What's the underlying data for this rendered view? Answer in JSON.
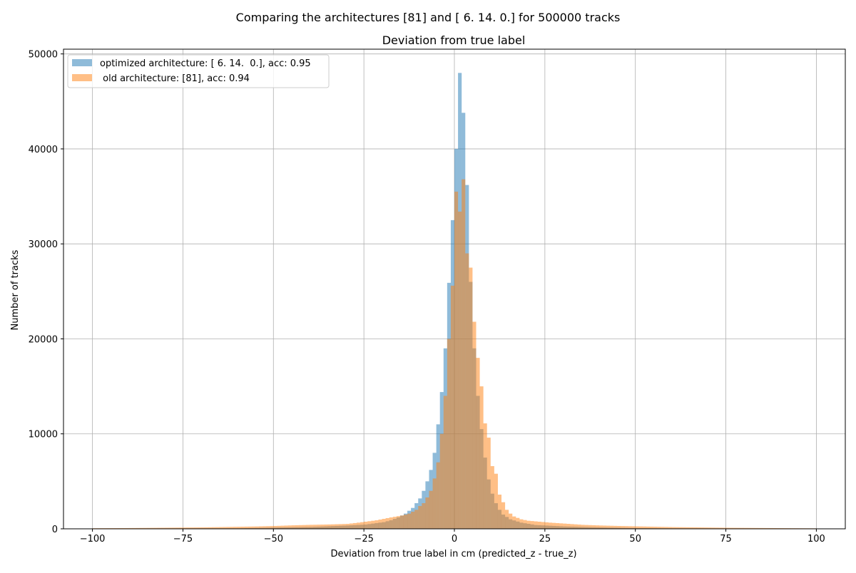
{
  "chart_data": {
    "type": "bar",
    "suptitle": "Comparing the architectures [81] and [ 6. 14.  0.] for 500000 tracks",
    "title": "Deviation from true label",
    "xlabel": "Deviation from true label in cm (predicted_z - true_z)",
    "ylabel": "Number of tracks",
    "xlim": [
      -108,
      108
    ],
    "ylim": [
      0,
      50500
    ],
    "grid": true,
    "legend_position": "top-left",
    "xticks": [
      -100,
      -75,
      -50,
      -25,
      0,
      25,
      50,
      75,
      100
    ],
    "yticks": [
      0,
      10000,
      20000,
      30000,
      40000,
      50000
    ],
    "xtick_labels": [
      "−100",
      "−75",
      "−50",
      "−25",
      "0",
      "25",
      "50",
      "75",
      "100"
    ],
    "ytick_labels": [
      "0",
      "10000",
      "20000",
      "30000",
      "40000",
      "50000"
    ],
    "bin_range": [
      -100,
      100
    ],
    "bin_width": 1,
    "series": [
      {
        "name": "optimized architecture: [ 6. 14.  0.], acc: 0.95",
        "color": "#1f77b4",
        "alpha": 0.5,
        "points": [
          [
            -100,
            30
          ],
          [
            -60,
            60
          ],
          [
            -40,
            200
          ],
          [
            -30,
            350
          ],
          [
            -25,
            450
          ],
          [
            -20,
            700
          ],
          [
            -18,
            900
          ],
          [
            -16,
            1200
          ],
          [
            -14,
            1600
          ],
          [
            -12,
            2200
          ],
          [
            -11,
            2700
          ],
          [
            -10,
            3200
          ],
          [
            -9,
            4000
          ],
          [
            -8,
            5000
          ],
          [
            -7,
            6200
          ],
          [
            -6,
            8000
          ],
          [
            -5,
            11000
          ],
          [
            -4,
            14400
          ],
          [
            -3,
            19000
          ],
          [
            -2,
            25900
          ],
          [
            -1,
            32500
          ],
          [
            0,
            40000
          ],
          [
            1,
            48000
          ],
          [
            2,
            43800
          ],
          [
            3,
            36200
          ],
          [
            4,
            26000
          ],
          [
            5,
            19000
          ],
          [
            6,
            14000
          ],
          [
            7,
            10500
          ],
          [
            8,
            7500
          ],
          [
            9,
            5200
          ],
          [
            10,
            3700
          ],
          [
            11,
            2700
          ],
          [
            12,
            2000
          ],
          [
            13,
            1500
          ],
          [
            15,
            1000
          ],
          [
            18,
            650
          ],
          [
            22,
            400
          ],
          [
            30,
            250
          ],
          [
            40,
            150
          ],
          [
            50,
            80
          ],
          [
            60,
            50
          ],
          [
            99,
            20
          ]
        ]
      },
      {
        "name": " old architecture: [81], acc: 0.94",
        "color": "#ff7f0e",
        "alpha": 0.5,
        "points": [
          [
            -100,
            60
          ],
          [
            -90,
            80
          ],
          [
            -70,
            150
          ],
          [
            -55,
            250
          ],
          [
            -50,
            300
          ],
          [
            -45,
            370
          ],
          [
            -40,
            420
          ],
          [
            -35,
            460
          ],
          [
            -30,
            520
          ],
          [
            -27,
            650
          ],
          [
            -25,
            750
          ],
          [
            -22,
            900
          ],
          [
            -20,
            1050
          ],
          [
            -18,
            1200
          ],
          [
            -15,
            1400
          ],
          [
            -13,
            1600
          ],
          [
            -12,
            1800
          ],
          [
            -11,
            2000
          ],
          [
            -10,
            2400
          ],
          [
            -9,
            2700
          ],
          [
            -8,
            3300
          ],
          [
            -7,
            4000
          ],
          [
            -6,
            5300
          ],
          [
            -5,
            7000
          ],
          [
            -4,
            10000
          ],
          [
            -3,
            14000
          ],
          [
            -2,
            20000
          ],
          [
            -1,
            25600
          ],
          [
            0,
            35500
          ],
          [
            1,
            33400
          ],
          [
            2,
            36800
          ],
          [
            3,
            29000
          ],
          [
            4,
            27500
          ],
          [
            5,
            21800
          ],
          [
            6,
            18000
          ],
          [
            7,
            15000
          ],
          [
            8,
            11100
          ],
          [
            9,
            9600
          ],
          [
            10,
            6600
          ],
          [
            11,
            5800
          ],
          [
            12,
            3600
          ],
          [
            13,
            2800
          ],
          [
            14,
            2000
          ],
          [
            15,
            1600
          ],
          [
            16,
            1300
          ],
          [
            18,
            1000
          ],
          [
            20,
            850
          ],
          [
            23,
            750
          ],
          [
            26,
            650
          ],
          [
            30,
            550
          ],
          [
            35,
            420
          ],
          [
            40,
            350
          ],
          [
            45,
            300
          ],
          [
            50,
            260
          ],
          [
            60,
            180
          ],
          [
            75,
            110
          ],
          [
            90,
            70
          ],
          [
            99,
            50
          ]
        ]
      }
    ]
  }
}
